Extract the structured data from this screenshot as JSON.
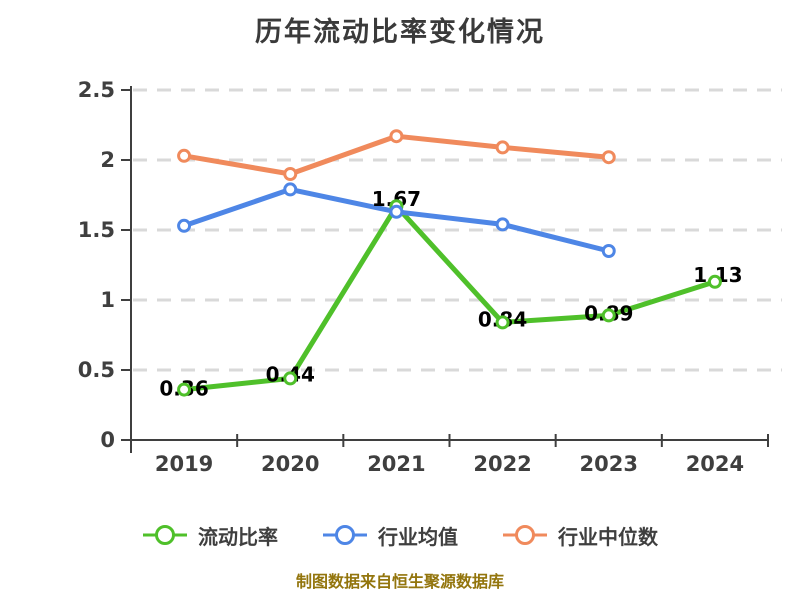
{
  "chart_data": {
    "type": "line",
    "title": "历年流动比率变化情况",
    "categories": [
      "2019",
      "2020",
      "2021",
      "2022",
      "2023",
      "2024"
    ],
    "ylim": [
      0,
      2.5
    ],
    "yticks": [
      0,
      0.5,
      1,
      1.5,
      2,
      2.5
    ],
    "ytick_labels": [
      "0",
      "0.5",
      "1",
      "1.5",
      "2",
      "2.5"
    ],
    "grid": {
      "horizontal": true,
      "style": "dashed",
      "color": "#d9d9d9"
    },
    "axis_color": "#3f3f3f",
    "tick_text_color": "#3f3f3f",
    "data_label_color": "#000000",
    "legend_position": "bottom",
    "series": [
      {
        "key": "current-ratio",
        "name": "流动比率",
        "color": "#4fc02a",
        "values": [
          0.36,
          0.44,
          1.67,
          0.84,
          0.89,
          1.13
        ],
        "labels": [
          "0.36",
          "0.44",
          "1.67",
          "0.84",
          "0.89",
          "1.13"
        ],
        "show_labels": true,
        "label_offsets": [
          [
            0,
            -1
          ],
          [
            0,
            -4
          ],
          [
            0,
            -7
          ],
          [
            0,
            -3
          ],
          [
            0,
            -2
          ],
          [
            3,
            -7
          ]
        ]
      },
      {
        "key": "industry-average",
        "name": "行业均值",
        "color": "#4e86e6",
        "values": [
          1.53,
          1.79,
          1.63,
          1.54,
          1.35
        ],
        "show_labels": false
      },
      {
        "key": "industry-median",
        "name": "行业中位数",
        "color": "#f08a5c",
        "values": [
          2.03,
          1.9,
          2.17,
          2.09,
          2.02
        ],
        "show_labels": false
      }
    ],
    "footnote": "制图数据来自恒生聚源数据库",
    "footnote_color": "#93750d"
  }
}
